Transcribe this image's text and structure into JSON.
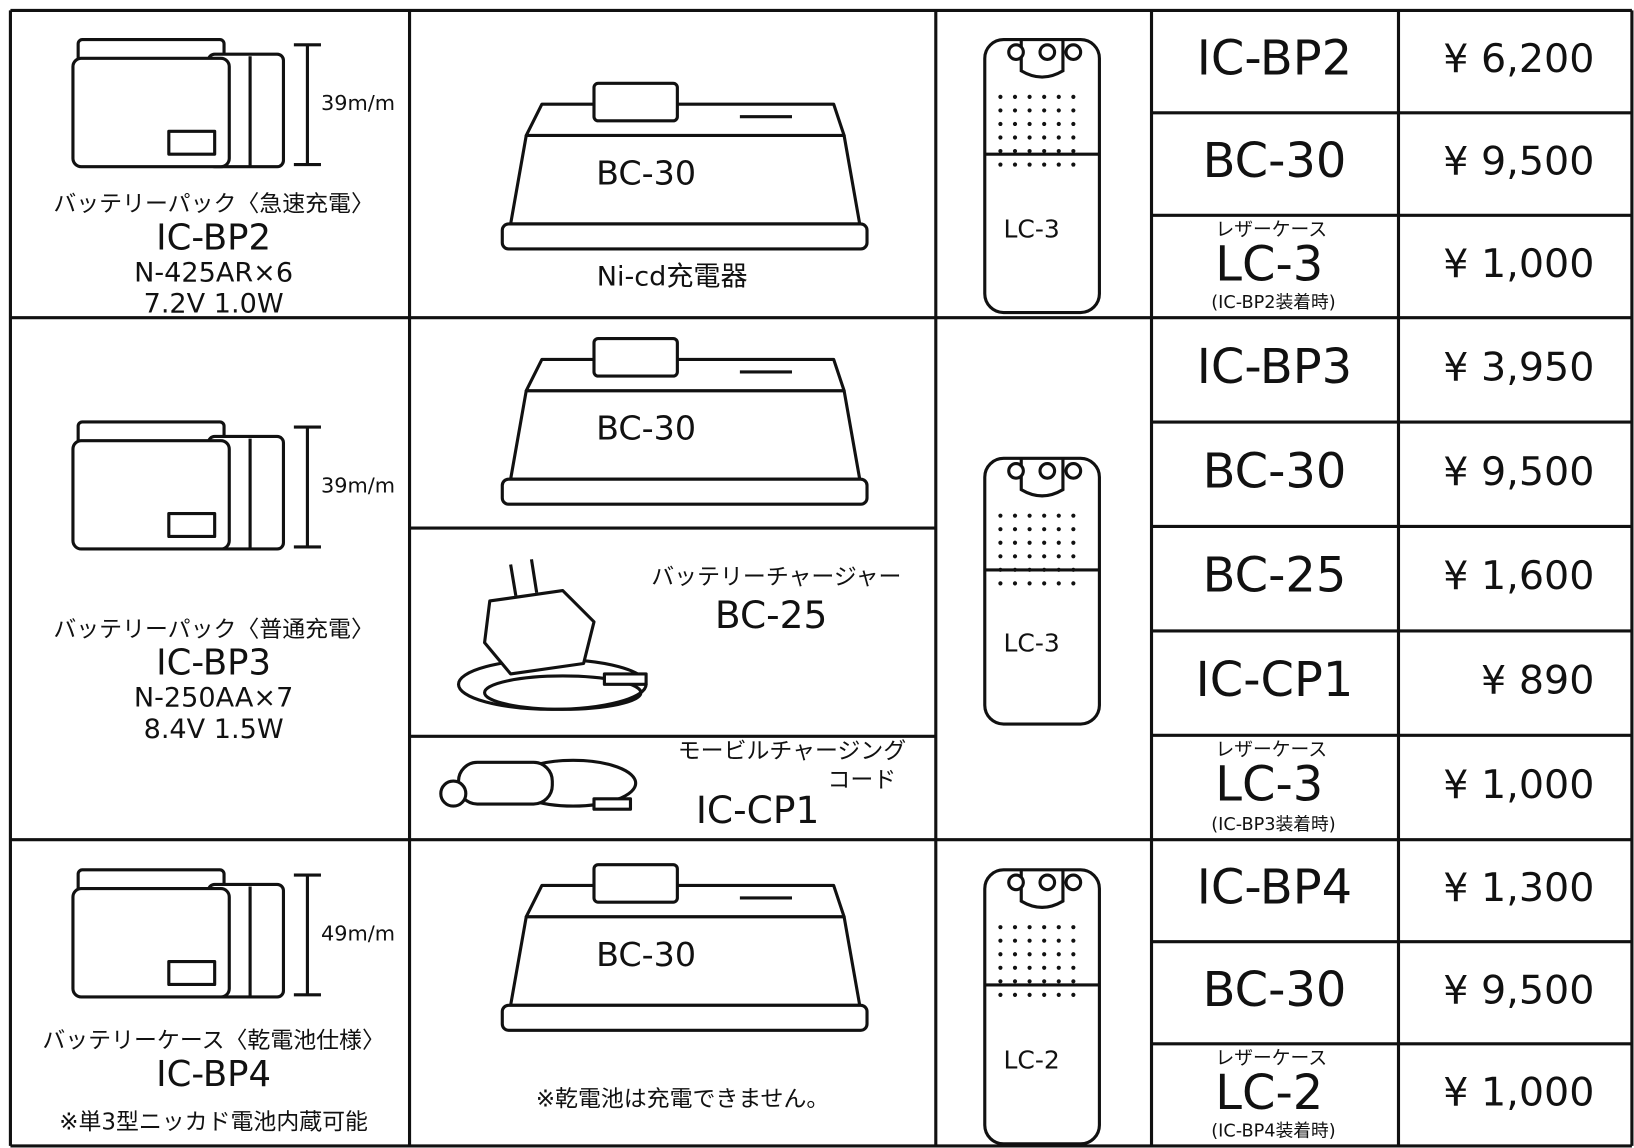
{
  "sections": [
    {
      "battery": {
        "height": "39m/m",
        "caption": "バッテリーパック〈急速充電〉",
        "model": "IC-BP2",
        "specs": [
          "N-425AR×6",
          "7.2V  1.0W"
        ]
      },
      "chargers": [
        {
          "label": "BC-30",
          "caption": "Ni-cd充電器"
        }
      ],
      "case": {
        "label": "LC-3"
      },
      "items": [
        {
          "name": "IC-BP2",
          "price": "¥ 6,200"
        },
        {
          "name": "BC-30",
          "price": "¥ 9,500"
        },
        {
          "note": "レザーケース",
          "name": "LC-3",
          "sub": "(IC-BP2装着時)",
          "price": "¥ 1,000"
        }
      ]
    },
    {
      "battery": {
        "height": "39m/m",
        "caption": "バッテリーパック〈普通充電〉",
        "model": "IC-BP3",
        "specs": [
          "N-250AA×7",
          "8.4V  1.5W"
        ]
      },
      "chargers": [
        {
          "label": "BC-30"
        },
        {
          "caption": "バッテリーチャージャー",
          "label": "BC-25"
        },
        {
          "caption_lines": [
            "モービルチャージング",
            "コード"
          ],
          "label": "IC-CP1"
        }
      ],
      "case": {
        "label": "LC-3"
      },
      "items": [
        {
          "name": "IC-BP3",
          "price": "¥ 3,950"
        },
        {
          "name": "BC-30",
          "price": "¥ 9,500"
        },
        {
          "name": "BC-25",
          "price": "¥ 1,600"
        },
        {
          "name": "IC-CP1",
          "price": "¥ 890"
        },
        {
          "note": "レザーケース",
          "name": "LC-3",
          "sub": "(IC-BP3装着時)",
          "price": "¥ 1,000"
        }
      ]
    },
    {
      "battery": {
        "height": "49m/m",
        "caption": "バッテリーケース〈乾電池仕様〉",
        "model": "IC-BP4",
        "note": "※単3型ニッカド電池内蔵可能"
      },
      "chargers": [
        {
          "label": "BC-30",
          "note": "※乾電池は充電できません。"
        }
      ],
      "case": {
        "label": "LC-2"
      },
      "items": [
        {
          "name": "IC-BP4",
          "price": "¥ 1,300"
        },
        {
          "name": "BC-30",
          "price": "¥ 9,500"
        },
        {
          "note": "レザーケース",
          "name": "LC-2",
          "sub": "(IC-BP4装着時)",
          "price": "¥ 1,000"
        }
      ]
    }
  ]
}
